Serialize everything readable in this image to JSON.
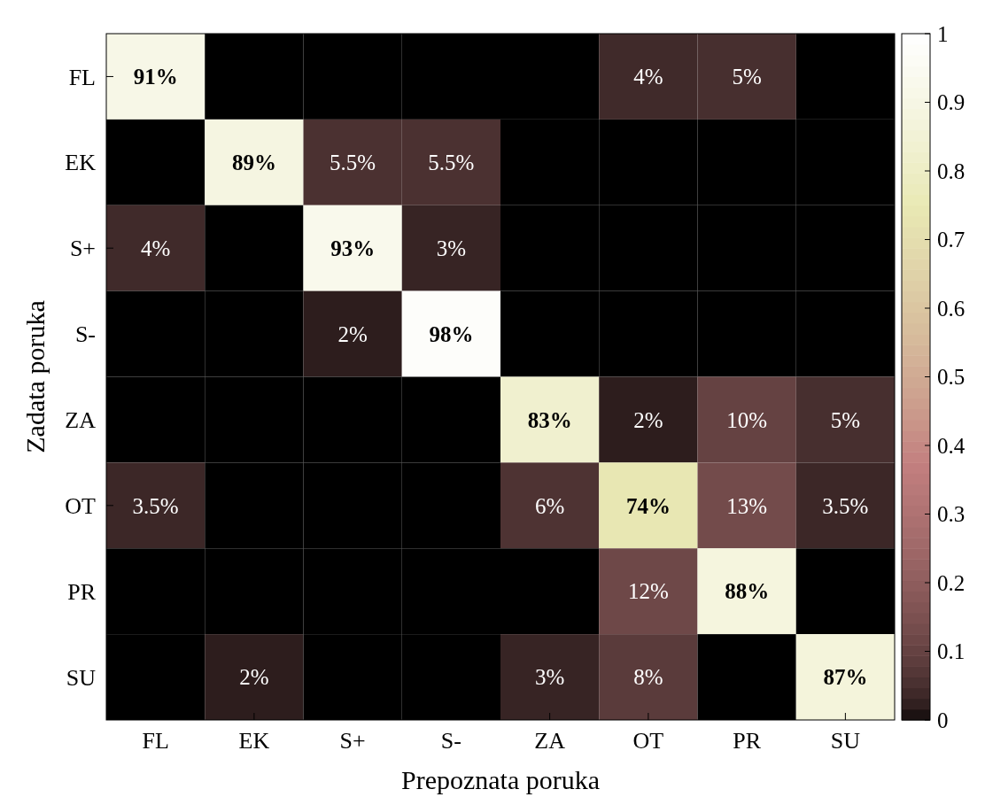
{
  "chart_data": {
    "type": "heatmap",
    "xlabel": "Prepoznata poruka",
    "ylabel": "Zadata poruka",
    "categories": [
      "FL",
      "EK",
      "S+",
      "S-",
      "ZA",
      "OT",
      "PR",
      "SU"
    ],
    "y_categories": [
      "FL",
      "EK",
      "S+",
      "S-",
      "ZA",
      "OT",
      "PR",
      "SU"
    ],
    "cells": [
      [
        0.91,
        0,
        0,
        0,
        0,
        0.04,
        0.05,
        0
      ],
      [
        0,
        0.89,
        0.055,
        0.055,
        0,
        0,
        0,
        0
      ],
      [
        0.04,
        0,
        0.93,
        0.03,
        0,
        0,
        0,
        0
      ],
      [
        0,
        0,
        0.02,
        0.98,
        0,
        0,
        0,
        0
      ],
      [
        0,
        0,
        0,
        0,
        0.83,
        0.02,
        0.1,
        0.05
      ],
      [
        0.035,
        0,
        0,
        0,
        0.06,
        0.74,
        0.13,
        0.035
      ],
      [
        0,
        0,
        0,
        0,
        0,
        0.12,
        0.88,
        0
      ],
      [
        0,
        0.02,
        0,
        0,
        0.03,
        0.08,
        0,
        0.87
      ]
    ],
    "cell_labels": [
      [
        "91%",
        null,
        null,
        null,
        null,
        "4%",
        "5%",
        null
      ],
      [
        null,
        "89%",
        "5.5%",
        "5.5%",
        null,
        null,
        null,
        null
      ],
      [
        "4%",
        null,
        "93%",
        "3%",
        null,
        null,
        null,
        null
      ],
      [
        null,
        null,
        "2%",
        "98%",
        null,
        null,
        null,
        null
      ],
      [
        null,
        null,
        null,
        null,
        "83%",
        "2%",
        "10%",
        "5%"
      ],
      [
        "3.5%",
        null,
        null,
        null,
        "6%",
        "74%",
        "13%",
        "3.5%"
      ],
      [
        null,
        null,
        null,
        null,
        null,
        "12%",
        "88%",
        null
      ],
      [
        null,
        "2%",
        null,
        null,
        "3%",
        "8%",
        null,
        "87%"
      ]
    ],
    "clim": [
      0,
      1
    ],
    "cticks": [
      0,
      0.1,
      0.2,
      0.3,
      0.4,
      0.5,
      0.6,
      0.7,
      0.8,
      0.9,
      1
    ]
  }
}
